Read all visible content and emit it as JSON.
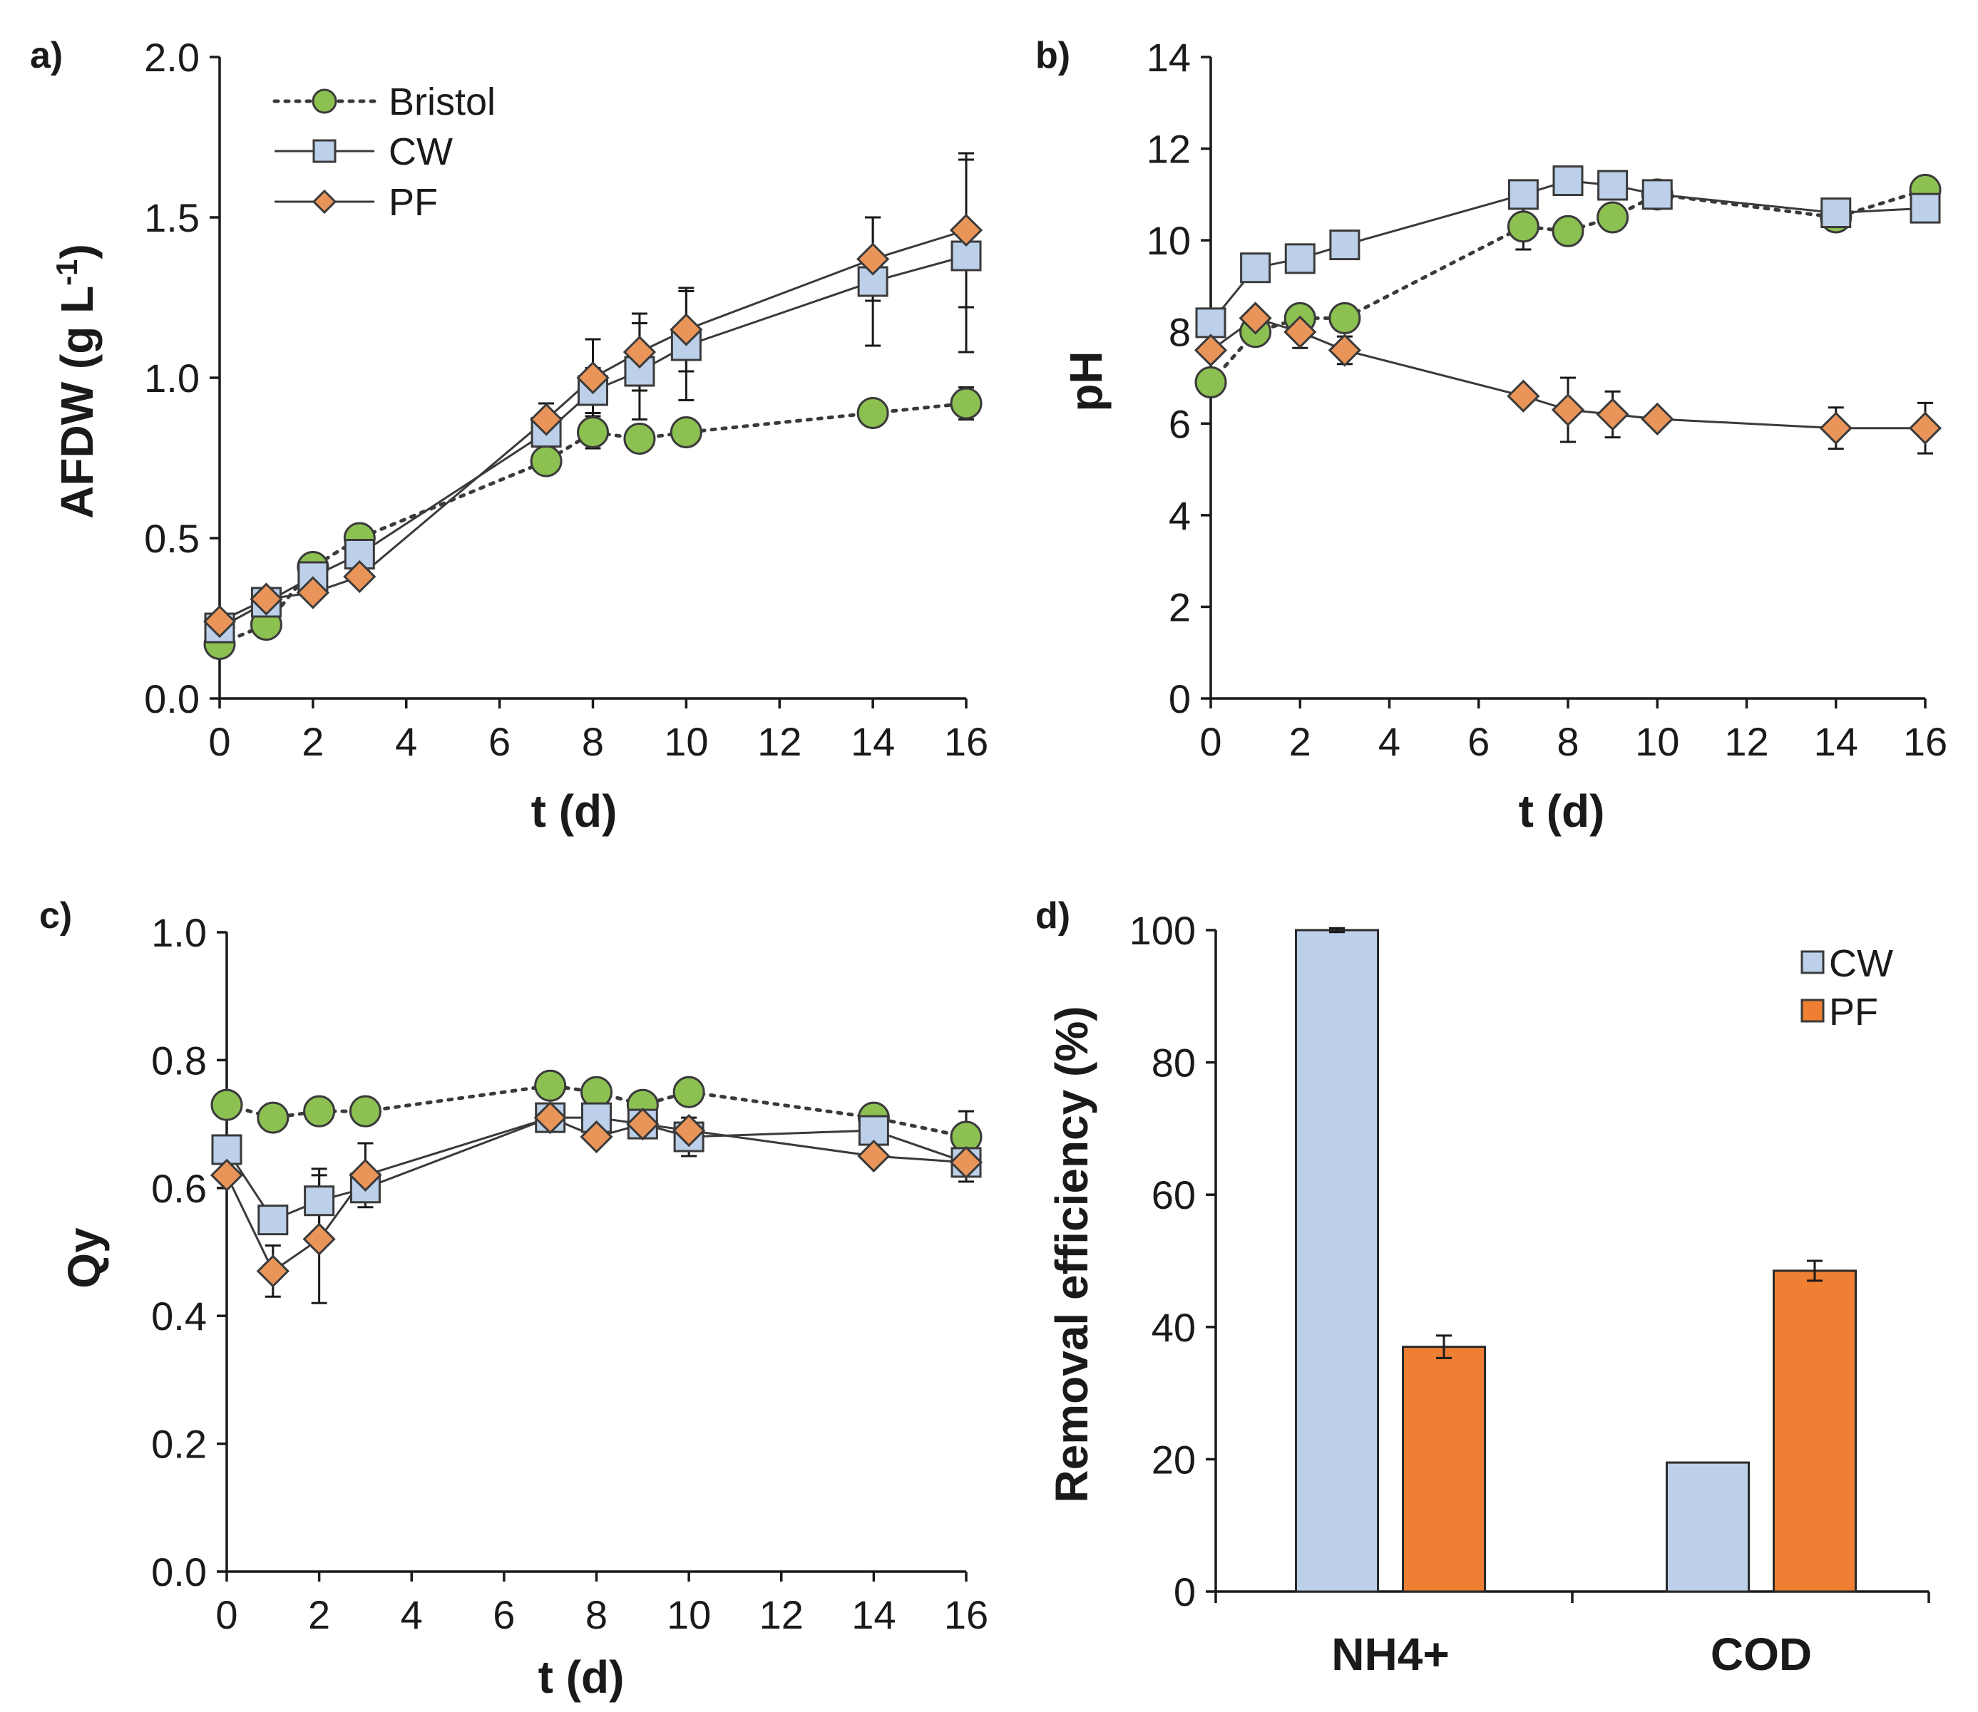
{
  "chart_data": [
    {
      "id": "a",
      "panel_label": "a)",
      "type": "line",
      "title": "",
      "xlabel": "t (d)",
      "ylabel": "AFDW (g L-1)",
      "ylabel_main": "AFDW (g L",
      "ylabel_sup": "-1",
      "ylabel_tail": ")",
      "xlim": [
        0,
        16
      ],
      "ylim": [
        0,
        2
      ],
      "xticks": [
        0,
        2,
        4,
        6,
        8,
        10,
        12,
        14,
        16
      ],
      "xtick_labels": [
        "0",
        "2",
        "4",
        "6",
        "8",
        "10",
        "12",
        "14",
        "16"
      ],
      "yticks": [
        0,
        0.5,
        1.0,
        1.5,
        2.0
      ],
      "ytick_labels": [
        "0.0",
        "0.5",
        "1.0",
        "1.5",
        "2.0"
      ],
      "legend": {
        "position": "top-left",
        "entries": [
          "Bristol",
          "CW",
          "PF"
        ]
      },
      "series": [
        {
          "name": "Bristol",
          "style": "dotted",
          "marker": "circle",
          "color": "#8cc152",
          "x": [
            0,
            1,
            2,
            3,
            7,
            8,
            9,
            10,
            14,
            16
          ],
          "y": [
            0.17,
            0.23,
            0.41,
            0.5,
            0.74,
            0.83,
            0.81,
            0.83,
            0.89,
            0.92
          ],
          "err": [
            0,
            0,
            0,
            0,
            0.04,
            0.05,
            0,
            0,
            0.04,
            0.05
          ]
        },
        {
          "name": "CW",
          "style": "solid",
          "marker": "square",
          "color": "#bcd0ea",
          "x": [
            0,
            1,
            2,
            3,
            7,
            8,
            9,
            10,
            14,
            16
          ],
          "y": [
            0.22,
            0.3,
            0.38,
            0.45,
            0.83,
            0.96,
            1.02,
            1.1,
            1.3,
            1.38
          ],
          "err": [
            0,
            0,
            0,
            0,
            0.05,
            0.07,
            0.15,
            0.17,
            0.2,
            0.3
          ]
        },
        {
          "name": "PF",
          "style": "solid",
          "marker": "diamond",
          "color": "#e9955a",
          "x": [
            0,
            1,
            2,
            3,
            7,
            8,
            9,
            10,
            14,
            16
          ],
          "y": [
            0.24,
            0.31,
            0.33,
            0.38,
            0.87,
            1.0,
            1.08,
            1.15,
            1.37,
            1.46
          ],
          "err": [
            0,
            0,
            0,
            0,
            0.05,
            0.12,
            0.12,
            0.13,
            0.13,
            0.24
          ]
        }
      ]
    },
    {
      "id": "b",
      "panel_label": "b)",
      "type": "line",
      "title": "",
      "xlabel": "t (d)",
      "ylabel": "pH",
      "xlim": [
        0,
        16
      ],
      "ylim": [
        0,
        14
      ],
      "xticks": [
        0,
        2,
        4,
        6,
        8,
        10,
        12,
        14,
        16
      ],
      "xtick_labels": [
        "0",
        "2",
        "4",
        "6",
        "8",
        "10",
        "12",
        "14",
        "16"
      ],
      "yticks": [
        0,
        2,
        4,
        6,
        8,
        10,
        12,
        14
      ],
      "ytick_labels": [
        "0",
        "2",
        "4",
        "6",
        "8",
        "10",
        "12",
        "14"
      ],
      "series": [
        {
          "name": "Bristol",
          "style": "dotted",
          "marker": "circle",
          "color": "#8cc152",
          "x": [
            0,
            1,
            2,
            3,
            7,
            8,
            9,
            10,
            14,
            16
          ],
          "y": [
            6.9,
            8.0,
            8.3,
            8.3,
            10.3,
            10.2,
            10.5,
            11.0,
            10.5,
            11.1
          ],
          "err": [
            0,
            0,
            0,
            0,
            0.5,
            0,
            0,
            0,
            0,
            0
          ]
        },
        {
          "name": "CW",
          "style": "solid",
          "marker": "square",
          "color": "#bcd0ea",
          "x": [
            0,
            1,
            2,
            3,
            7,
            8,
            9,
            10,
            14,
            16
          ],
          "y": [
            8.2,
            9.4,
            9.6,
            9.9,
            11.0,
            11.3,
            11.2,
            11.0,
            10.6,
            10.7
          ],
          "err": [
            0,
            0,
            0,
            0,
            0,
            0,
            0,
            0,
            0,
            0
          ]
        },
        {
          "name": "PF",
          "style": "solid",
          "marker": "diamond",
          "color": "#e9955a",
          "x": [
            0,
            1,
            2,
            3,
            7,
            8,
            9,
            10,
            14,
            16
          ],
          "y": [
            7.6,
            8.3,
            8.0,
            7.6,
            6.6,
            6.3,
            6.2,
            6.1,
            5.9,
            5.9
          ],
          "err": [
            0,
            0,
            0.35,
            0.3,
            0,
            0.7,
            0.5,
            0,
            0.45,
            0.55
          ]
        }
      ]
    },
    {
      "id": "c",
      "panel_label": "c)",
      "type": "line",
      "title": "",
      "xlabel": "t (d)",
      "ylabel": "Qy",
      "xlim": [
        0,
        16
      ],
      "ylim": [
        0,
        1
      ],
      "xticks": [
        0,
        2,
        4,
        6,
        8,
        10,
        12,
        14,
        16
      ],
      "xtick_labels": [
        "0",
        "2",
        "4",
        "6",
        "8",
        "10",
        "12",
        "14",
        "16"
      ],
      "yticks": [
        0,
        0.2,
        0.4,
        0.6,
        0.8,
        1.0
      ],
      "ytick_labels": [
        "0.0",
        "0.2",
        "0.4",
        "0.6",
        "0.8",
        "1.0"
      ],
      "series": [
        {
          "name": "Bristol",
          "style": "dotted",
          "marker": "circle",
          "color": "#8cc152",
          "x": [
            0,
            1,
            2,
            3,
            7,
            8,
            9,
            10,
            14,
            16
          ],
          "y": [
            0.73,
            0.71,
            0.72,
            0.72,
            0.76,
            0.75,
            0.73,
            0.75,
            0.71,
            0.68
          ],
          "err": [
            0,
            0,
            0,
            0,
            0,
            0,
            0,
            0,
            0,
            0.04
          ]
        },
        {
          "name": "CW",
          "style": "solid",
          "marker": "square",
          "color": "#bcd0ea",
          "x": [
            0,
            1,
            2,
            3,
            7,
            8,
            9,
            10,
            14,
            16
          ],
          "y": [
            0.66,
            0.55,
            0.58,
            0.6,
            0.71,
            0.71,
            0.7,
            0.68,
            0.69,
            0.64
          ],
          "err": [
            0,
            0,
            0.05,
            0.02,
            0,
            0,
            0,
            0.03,
            0,
            0.03
          ]
        },
        {
          "name": "PF",
          "style": "solid",
          "marker": "diamond",
          "color": "#e9955a",
          "x": [
            0,
            1,
            2,
            3,
            7,
            8,
            9,
            10,
            14,
            16
          ],
          "y": [
            0.62,
            0.47,
            0.52,
            0.62,
            0.71,
            0.68,
            0.7,
            0.69,
            0.65,
            0.64
          ],
          "err": [
            0,
            0.04,
            0.1,
            0.05,
            0,
            0,
            0,
            0,
            0,
            0
          ]
        }
      ]
    },
    {
      "id": "d",
      "panel_label": "d)",
      "type": "bar",
      "title": "",
      "xlabel": "",
      "ylabel": "Removal efficiency (%)",
      "ylim": [
        0,
        100
      ],
      "yticks": [
        0,
        20,
        40,
        60,
        80,
        100
      ],
      "ytick_labels": [
        "0",
        "20",
        "40",
        "60",
        "80",
        "100"
      ],
      "categories": [
        "NH4+",
        "COD"
      ],
      "legend": {
        "position": "top-right",
        "entries": [
          "CW",
          "PF"
        ]
      },
      "series": [
        {
          "name": "CW",
          "color": "#bcd0ea",
          "values": [
            100,
            19.5
          ],
          "err": [
            0.3,
            0
          ]
        },
        {
          "name": "PF",
          "color": "#ee7f33",
          "values": [
            37,
            48.5
          ],
          "err": [
            1.7,
            1.5
          ]
        }
      ]
    }
  ]
}
